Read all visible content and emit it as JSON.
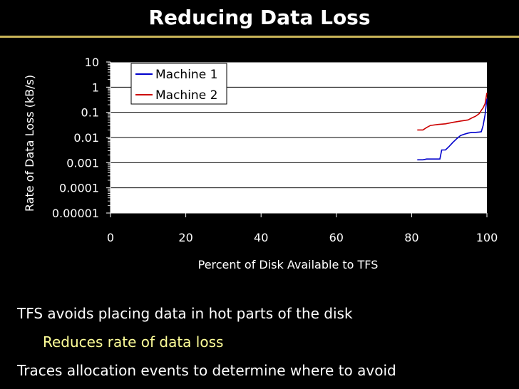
{
  "slide": {
    "title": "Reducing Data Loss",
    "bullets": [
      "TFS avoids placing data in hot parts of the disk",
      "Reduces rate of data loss",
      "Traces allocation events to determine where to avoid"
    ]
  },
  "colors": {
    "background": "#000000",
    "plot_bg": "#ffffff",
    "accent_rule": "#c9b458",
    "subbullet_text": "#ffff99",
    "machine1": "#0000cc",
    "machine2": "#cc0000"
  },
  "chart_data": {
    "type": "line",
    "title": "",
    "xlabel": "Percent of Disk Available to TFS",
    "ylabel": "Rate of Data Loss (kB/s)",
    "xlim": [
      0,
      100
    ],
    "ylim": [
      1e-05,
      10
    ],
    "yscale": "log",
    "x_ticks": [
      "0",
      "20",
      "40",
      "60",
      "80",
      "100"
    ],
    "y_ticks": [
      "10",
      "1",
      "0.1",
      "0.01",
      "0.001",
      "0.0001",
      "0.00001"
    ],
    "grid": "horizontal major gridlines",
    "legend_position": "top-left",
    "series": [
      {
        "name": "Machine 1",
        "color": "#0000cc",
        "points": [
          [
            81.5,
            0.0013
          ],
          [
            83,
            0.0013
          ],
          [
            84,
            0.0014
          ],
          [
            86,
            0.0014
          ],
          [
            87.5,
            0.0014
          ],
          [
            88,
            0.0032
          ],
          [
            89,
            0.0032
          ],
          [
            90,
            0.0045
          ],
          [
            91,
            0.0065
          ],
          [
            92,
            0.009
          ],
          [
            93,
            0.012
          ],
          [
            94,
            0.0135
          ],
          [
            95,
            0.015
          ],
          [
            96,
            0.016
          ],
          [
            97,
            0.016
          ],
          [
            98,
            0.0165
          ],
          [
            98.5,
            0.017
          ],
          [
            99,
            0.03
          ],
          [
            99.5,
            0.08
          ],
          [
            100,
            0.35
          ]
        ]
      },
      {
        "name": "Machine 2",
        "color": "#cc0000",
        "points": [
          [
            81.5,
            0.02
          ],
          [
            83,
            0.02
          ],
          [
            84,
            0.025
          ],
          [
            85,
            0.03
          ],
          [
            87,
            0.033
          ],
          [
            89,
            0.035
          ],
          [
            91,
            0.04
          ],
          [
            93,
            0.045
          ],
          [
            95,
            0.05
          ],
          [
            96,
            0.06
          ],
          [
            97,
            0.07
          ],
          [
            98,
            0.09
          ],
          [
            98.5,
            0.12
          ],
          [
            99,
            0.15
          ],
          [
            99.5,
            0.22
          ],
          [
            100,
            0.6
          ]
        ]
      }
    ]
  }
}
